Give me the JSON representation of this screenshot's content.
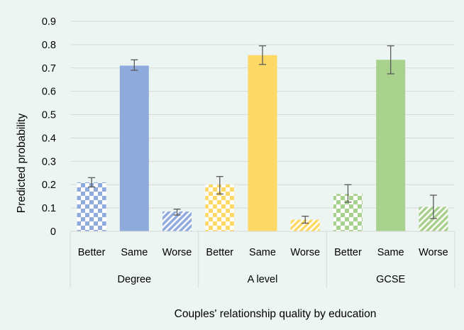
{
  "chart_data": {
    "type": "bar",
    "xlabel": "Couples' relationship quality by education",
    "ylabel": "Predicted probability",
    "ylim": [
      0,
      0.9
    ],
    "yticks": [
      0,
      0.1,
      0.2,
      0.3,
      0.4,
      0.5,
      0.6,
      0.7,
      0.8,
      0.9
    ],
    "ytick_labels": [
      "0",
      "0.1",
      "0.2",
      "0.3",
      "0.4",
      "0.5",
      "0.6",
      "0.7",
      "0.8",
      "0.9"
    ],
    "grid": "horizontal",
    "legend": "none",
    "groups": [
      {
        "label": "Degree",
        "color": "#8faadc",
        "bars": [
          {
            "label": "Better",
            "value": 0.21,
            "err_low": 0.19,
            "err_high": 0.23,
            "pattern": "checker"
          },
          {
            "label": "Same",
            "value": 0.71,
            "err_low": 0.69,
            "err_high": 0.735,
            "pattern": "solid"
          },
          {
            "label": "Worse",
            "value": 0.085,
            "err_low": 0.07,
            "err_high": 0.095,
            "pattern": "stripes"
          }
        ]
      },
      {
        "label": "A level",
        "color": "#ffd966",
        "bars": [
          {
            "label": "Better",
            "value": 0.2,
            "err_low": 0.16,
            "err_high": 0.235,
            "pattern": "checker"
          },
          {
            "label": "Same",
            "value": 0.755,
            "err_low": 0.715,
            "err_high": 0.795,
            "pattern": "solid"
          },
          {
            "label": "Worse",
            "value": 0.05,
            "err_low": 0.035,
            "err_high": 0.065,
            "pattern": "stripes"
          }
        ]
      },
      {
        "label": "GCSE",
        "color": "#a9d18e",
        "bars": [
          {
            "label": "Better",
            "value": 0.16,
            "err_low": 0.125,
            "err_high": 0.2,
            "pattern": "checker"
          },
          {
            "label": "Same",
            "value": 0.735,
            "err_low": 0.675,
            "err_high": 0.795,
            "pattern": "solid"
          },
          {
            "label": "Worse",
            "value": 0.105,
            "err_low": 0.055,
            "err_high": 0.155,
            "pattern": "stripes"
          }
        ]
      }
    ]
  }
}
